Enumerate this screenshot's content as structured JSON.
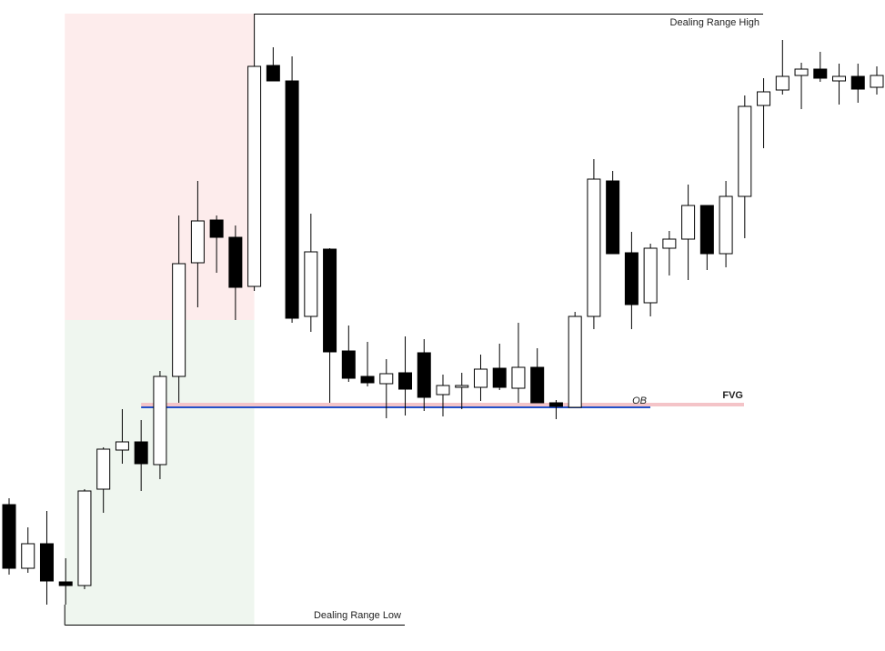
{
  "chart_data": {
    "type": "candlestick",
    "open": [
      161,
      91,
      118,
      76,
      72,
      178,
      221,
      230,
      205,
      302,
      427,
      474,
      455,
      401,
      644,
      627,
      368,
      442,
      330,
      302,
      294,
      306,
      328,
      282,
      291,
      290,
      311,
      289,
      312,
      273,
      268,
      368,
      517,
      438,
      383,
      443,
      453,
      490,
      437,
      500,
      600,
      617,
      633,
      640,
      627,
      632,
      620
    ],
    "high": [
      168,
      136,
      154,
      102,
      178,
      224,
      266,
      254,
      308,
      479,
      517,
      479,
      468,
      701,
      664,
      654,
      481,
      443,
      358,
      340,
      321,
      346,
      343,
      304,
      306,
      326,
      338,
      361,
      333,
      276,
      373,
      541,
      528,
      461,
      448,
      462,
      513,
      490,
      517,
      611,
      630,
      672,
      647,
      659,
      646,
      646,
      643
    ],
    "low": [
      84,
      86,
      51,
      51,
      68,
      152,
      206,
      176,
      189,
      273,
      378,
      416,
      364,
      396,
      627,
      361,
      351,
      273,
      296,
      291,
      256,
      259,
      264,
      258,
      266,
      275,
      287,
      273,
      273,
      255,
      268,
      354,
      437,
      354,
      368,
      413,
      408,
      419,
      422,
      454,
      553,
      612,
      596,
      626,
      601,
      603,
      612
    ],
    "close": [
      91,
      118,
      77,
      72,
      176,
      222,
      230,
      206,
      302,
      426,
      473,
      455,
      400,
      643,
      627,
      366,
      439,
      329,
      300,
      295,
      305,
      288,
      279,
      292,
      292,
      310,
      290,
      312,
      273,
      269,
      368,
      519,
      437,
      381,
      443,
      453,
      490,
      437,
      500,
      599,
      615,
      632,
      640,
      630,
      632,
      618,
      633
    ],
    "ylim": [
      0,
      716
    ],
    "up_color": "#ffffff",
    "down_color": "#000000",
    "dealing_range": {
      "high": 701,
      "high_label": "Dealing Range High",
      "low": 29,
      "low_label": "Dealing Range Low",
      "equilibrium": 364,
      "premium_color": "#fdecec",
      "discount_color": "#eff6ef"
    },
    "fvg": {
      "label": "FVG",
      "top": 273,
      "bottom": 269,
      "color": "#f4c4c8"
    },
    "ob": {
      "label": "OB",
      "value": 269,
      "color": "#2450c8"
    }
  }
}
